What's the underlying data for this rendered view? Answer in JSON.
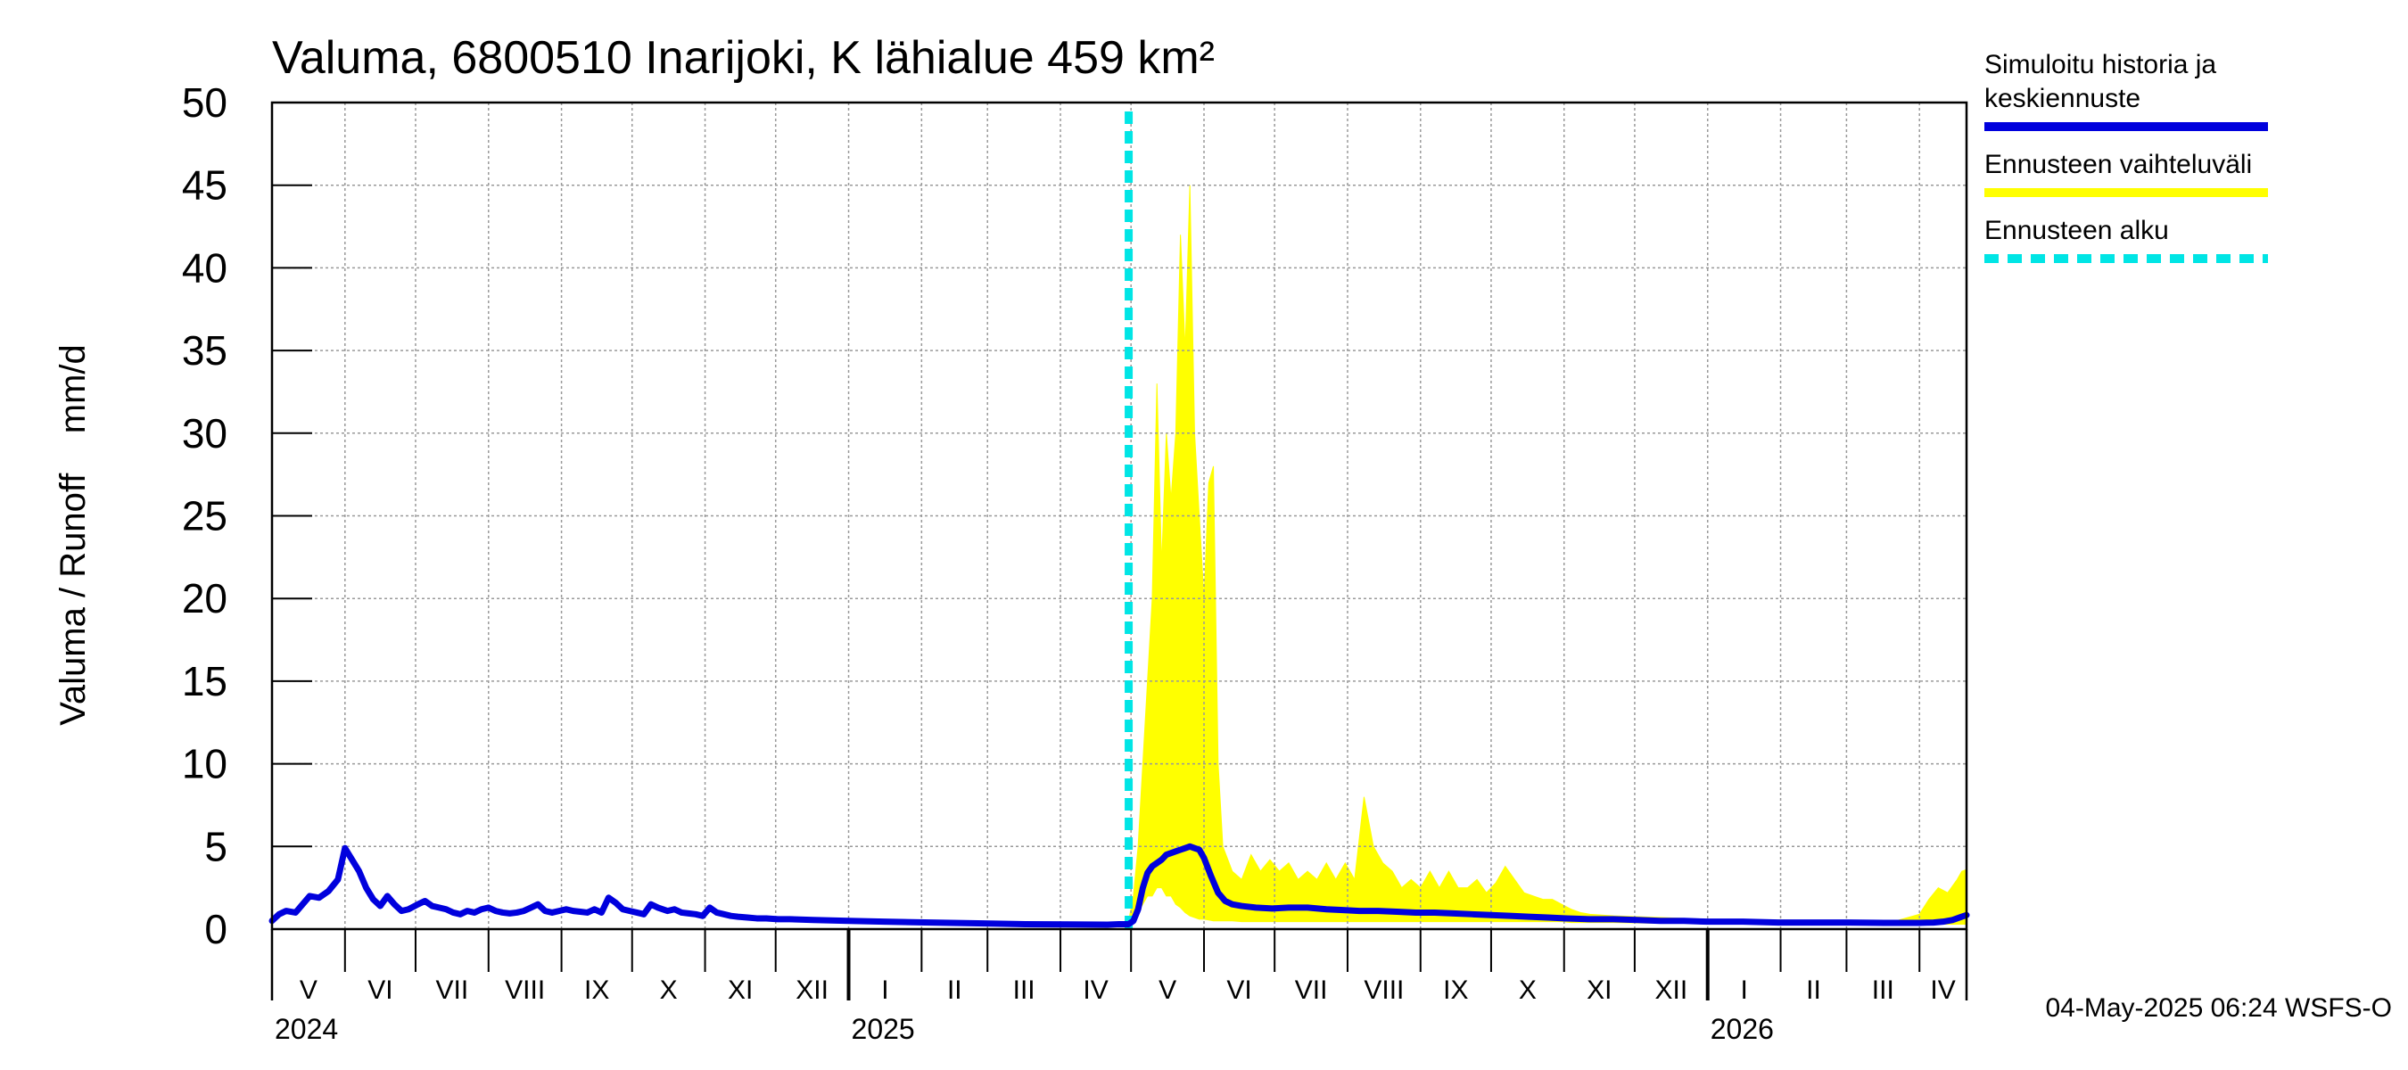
{
  "chart_data": {
    "type": "line",
    "title": "Valuma, 6800510 Inarijoki, K lähialue 459 km²",
    "ylabel": "Valuma / Runoff    mm/d",
    "xlabel": "",
    "ylim": [
      0,
      50
    ],
    "y_ticks": [
      "0",
      "5",
      "10",
      "15",
      "20",
      "25",
      "30",
      "35",
      "40",
      "45",
      "50"
    ],
    "x_range_days": [
      0,
      720
    ],
    "months": [
      {
        "label": "V",
        "start": 0,
        "end": 31
      },
      {
        "label": "VI",
        "start": 31,
        "end": 61
      },
      {
        "label": "VII",
        "start": 61,
        "end": 92
      },
      {
        "label": "VIII",
        "start": 92,
        "end": 123
      },
      {
        "label": "IX",
        "start": 123,
        "end": 153
      },
      {
        "label": "X",
        "start": 153,
        "end": 184
      },
      {
        "label": "XI",
        "start": 184,
        "end": 214
      },
      {
        "label": "XII",
        "start": 214,
        "end": 245
      },
      {
        "label": "I",
        "start": 245,
        "end": 276
      },
      {
        "label": "II",
        "start": 276,
        "end": 304
      },
      {
        "label": "III",
        "start": 304,
        "end": 335
      },
      {
        "label": "IV",
        "start": 335,
        "end": 365
      },
      {
        "label": "V",
        "start": 365,
        "end": 396
      },
      {
        "label": "VI",
        "start": 396,
        "end": 426
      },
      {
        "label": "VII",
        "start": 426,
        "end": 457
      },
      {
        "label": "VIII",
        "start": 457,
        "end": 488
      },
      {
        "label": "IX",
        "start": 488,
        "end": 518
      },
      {
        "label": "X",
        "start": 518,
        "end": 549
      },
      {
        "label": "XI",
        "start": 549,
        "end": 579
      },
      {
        "label": "XII",
        "start": 579,
        "end": 610
      },
      {
        "label": "I",
        "start": 610,
        "end": 641
      },
      {
        "label": "II",
        "start": 641,
        "end": 669
      },
      {
        "label": "III",
        "start": 669,
        "end": 700
      },
      {
        "label": "IV",
        "start": 700,
        "end": 720
      }
    ],
    "years": [
      {
        "label": "2024",
        "day": 0
      },
      {
        "label": "2025",
        "day": 245
      },
      {
        "label": "2026",
        "day": 610
      }
    ],
    "forecast_start_day": 364,
    "series": [
      {
        "name": "Simuloitu historia ja keskiennuste",
        "color": "#0000dd",
        "x": [
          0,
          3,
          6,
          10,
          13,
          16,
          20,
          24,
          28,
          31,
          34,
          37,
          40,
          43,
          46,
          49,
          52,
          55,
          58,
          62,
          65,
          68,
          71,
          74,
          77,
          80,
          83,
          86,
          89,
          92,
          95,
          98,
          101,
          104,
          107,
          110,
          113,
          116,
          119,
          122,
          125,
          128,
          131,
          134,
          137,
          140,
          143,
          146,
          149,
          152,
          155,
          158,
          161,
          164,
          168,
          171,
          174,
          177,
          180,
          183,
          186,
          189,
          192,
          195,
          198,
          202,
          206,
          210,
          215,
          220,
          230,
          245,
          260,
          280,
          300,
          320,
          340,
          355,
          360,
          364,
          366,
          368,
          370,
          372,
          374,
          376,
          378,
          380,
          382,
          384,
          386,
          388,
          390,
          392,
          394,
          396,
          399,
          402,
          405,
          408,
          412,
          418,
          425,
          432,
          440,
          448,
          455,
          462,
          470,
          478,
          486,
          494,
          502,
          510,
          518,
          526,
          534,
          542,
          550,
          560,
          570,
          580,
          590,
          600,
          610,
          625,
          640,
          655,
          670,
          685,
          700,
          706,
          710,
          714,
          716,
          718,
          720
        ],
        "y": [
          0.5,
          0.9,
          1.1,
          1.0,
          1.5,
          2.0,
          1.9,
          2.3,
          3.0,
          4.9,
          4.2,
          3.5,
          2.5,
          1.8,
          1.4,
          2.0,
          1.5,
          1.1,
          1.2,
          1.5,
          1.7,
          1.4,
          1.3,
          1.2,
          1.0,
          0.9,
          1.1,
          1.0,
          1.2,
          1.3,
          1.1,
          1.0,
          0.95,
          1.0,
          1.1,
          1.3,
          1.5,
          1.1,
          1.0,
          1.1,
          1.2,
          1.1,
          1.05,
          1.0,
          1.2,
          1.0,
          1.9,
          1.6,
          1.2,
          1.1,
          1.0,
          0.9,
          1.5,
          1.3,
          1.1,
          1.2,
          1.0,
          0.95,
          0.9,
          0.8,
          1.3,
          1.0,
          0.9,
          0.8,
          0.75,
          0.7,
          0.65,
          0.65,
          0.6,
          0.6,
          0.55,
          0.5,
          0.45,
          0.4,
          0.35,
          0.3,
          0.28,
          0.27,
          0.3,
          0.3,
          0.5,
          1.2,
          2.5,
          3.4,
          3.8,
          4.0,
          4.2,
          4.5,
          4.6,
          4.7,
          4.8,
          4.9,
          5.0,
          4.9,
          4.8,
          4.3,
          3.2,
          2.2,
          1.7,
          1.5,
          1.4,
          1.3,
          1.25,
          1.3,
          1.3,
          1.2,
          1.15,
          1.1,
          1.1,
          1.05,
          1.0,
          1.0,
          0.95,
          0.9,
          0.85,
          0.8,
          0.75,
          0.7,
          0.65,
          0.6,
          0.6,
          0.55,
          0.5,
          0.5,
          0.45,
          0.45,
          0.4,
          0.4,
          0.4,
          0.38,
          0.38,
          0.4,
          0.45,
          0.55,
          0.65,
          0.75,
          0.85
        ]
      },
      {
        "name": "Ennusteen vaihteluväli",
        "color": "#ffff00",
        "x": [
          364,
          366,
          368,
          370,
          372,
          374,
          376,
          378,
          380,
          382,
          384,
          386,
          388,
          390,
          392,
          394,
          396,
          398,
          400,
          402,
          404,
          408,
          412,
          416,
          420,
          424,
          428,
          432,
          436,
          440,
          444,
          448,
          452,
          456,
          460,
          462,
          464,
          466,
          468,
          472,
          476,
          480,
          484,
          488,
          492,
          496,
          500,
          504,
          508,
          512,
          516,
          520,
          524,
          528,
          532,
          536,
          540,
          544,
          548,
          552,
          556,
          560,
          570,
          590,
          610,
          640,
          670,
          690,
          700,
          704,
          708,
          712,
          716,
          718,
          720
        ],
        "upper": [
          0.5,
          2.0,
          5.0,
          10.0,
          15.0,
          20.0,
          33.0,
          22.0,
          30.0,
          26.0,
          30.0,
          42.0,
          35.0,
          45.0,
          30.0,
          25.0,
          20.0,
          27.0,
          28.0,
          10.0,
          5.0,
          3.5,
          3.0,
          4.5,
          3.5,
          4.2,
          3.5,
          4.0,
          3.0,
          3.5,
          3.0,
          4.0,
          3.0,
          4.0,
          3.0,
          5.5,
          8.0,
          6.5,
          5.0,
          4.0,
          3.5,
          2.5,
          3.0,
          2.5,
          3.5,
          2.5,
          3.5,
          2.5,
          2.5,
          3.0,
          2.2,
          2.8,
          3.8,
          3.0,
          2.2,
          2.0,
          1.8,
          1.8,
          1.5,
          1.2,
          1.0,
          0.9,
          0.8,
          0.7,
          0.6,
          0.55,
          0.5,
          0.5,
          0.9,
          1.8,
          2.5,
          2.2,
          3.0,
          3.5,
          3.6
        ],
        "lower": [
          0.3,
          0.5,
          1.0,
          1.5,
          2.0,
          2.0,
          2.5,
          2.5,
          2.0,
          2.0,
          1.5,
          1.3,
          1.0,
          0.8,
          0.7,
          0.6,
          0.6,
          0.55,
          0.5,
          0.5,
          0.5,
          0.5,
          0.45,
          0.45,
          0.45,
          0.45,
          0.45,
          0.45,
          0.45,
          0.45,
          0.45,
          0.45,
          0.45,
          0.45,
          0.45,
          0.45,
          0.45,
          0.45,
          0.45,
          0.45,
          0.45,
          0.45,
          0.45,
          0.45,
          0.45,
          0.45,
          0.45,
          0.45,
          0.45,
          0.45,
          0.45,
          0.45,
          0.45,
          0.45,
          0.45,
          0.45,
          0.45,
          0.45,
          0.45,
          0.4,
          0.4,
          0.4,
          0.4,
          0.35,
          0.35,
          0.3,
          0.3,
          0.3,
          0.3,
          0.3,
          0.3,
          0.3,
          0.3,
          0.3,
          0.3
        ]
      }
    ],
    "legend": [
      {
        "label": "Simuloitu historia ja keskiennuste",
        "lines": [
          "Simuloitu historia ja",
          "keskiennuste"
        ],
        "color": "#0000dd",
        "style": "solid"
      },
      {
        "label": "Ennusteen vaihteluväli",
        "lines": [
          "Ennusteen vaihteluväli"
        ],
        "color": "#ffff00",
        "style": "solid"
      },
      {
        "label": "Ennusteen alku",
        "lines": [
          "Ennusteen alku"
        ],
        "color": "#00e5e5",
        "style": "dashed"
      }
    ],
    "legend_position": "right",
    "grid": true
  },
  "footer": "04-May-2025 06:24 WSFS-O",
  "colors": {
    "forecast_line": "#00e5e5",
    "grid": "#999999"
  }
}
